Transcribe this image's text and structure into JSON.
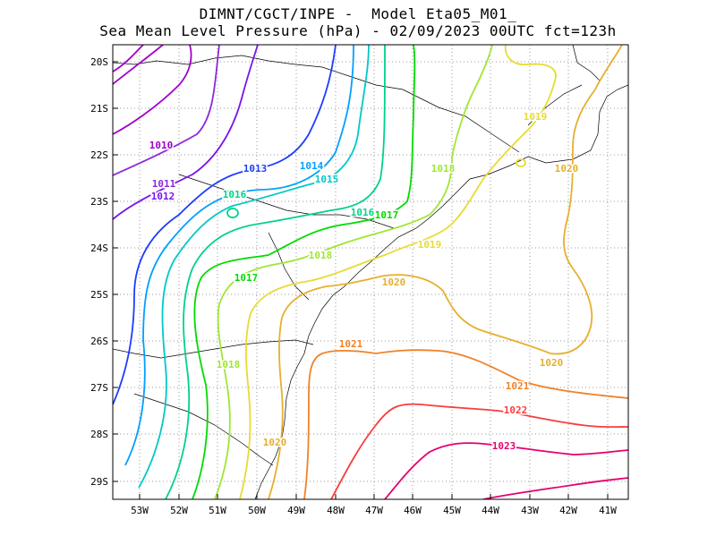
{
  "header": {
    "line1": "DIMNT/CGCT/INPE -  Model Eta05_M01_",
    "line2": "Sea Mean Level Pressure (hPa) - 02/09/2023 00UTC fct=123h"
  },
  "axes": {
    "x_ticks": [
      "53W",
      "52W",
      "51W",
      "50W",
      "49W",
      "48W",
      "47W",
      "46W",
      "45W",
      "44W",
      "43W",
      "42W",
      "41W"
    ],
    "y_ticks": [
      "20S",
      "21S",
      "22S",
      "23S",
      "24S",
      "25S",
      "26S",
      "27S",
      "28S",
      "29S"
    ]
  },
  "colors": {
    "1010": "#a000c8",
    "1011": "#8c28dc",
    "1012": "#7814f0",
    "1013": "#1e3cff",
    "1014": "#00a0ff",
    "1015": "#00c8c8",
    "1016": "#00d28c",
    "1017": "#00dc00",
    "1018": "#a0e632",
    "1019": "#e6dc32",
    "1020": "#e6af2d",
    "1021": "#f08228",
    "1022": "#fa3c3c",
    "1023": "#e6006e"
  },
  "contour_labels": [
    {
      "text": "1010",
      "level": "1010"
    },
    {
      "text": "1011",
      "level": "1011"
    },
    {
      "text": "1012",
      "level": "1012"
    },
    {
      "text": "1013",
      "level": "1013"
    },
    {
      "text": "1014",
      "level": "1014"
    },
    {
      "text": "1015",
      "level": "1015"
    },
    {
      "text": "1016",
      "level": "1016"
    },
    {
      "text": "1016",
      "level": "1016"
    },
    {
      "text": "1017",
      "level": "1017"
    },
    {
      "text": "1017",
      "level": "1017"
    },
    {
      "text": "1018",
      "level": "1018"
    },
    {
      "text": "1018",
      "level": "1018"
    },
    {
      "text": "1018",
      "level": "1018"
    },
    {
      "text": "1019",
      "level": "1019"
    },
    {
      "text": "1019",
      "level": "1019"
    },
    {
      "text": "1020",
      "level": "1020"
    },
    {
      "text": "1020",
      "level": "1020"
    },
    {
      "text": "1020",
      "level": "1020"
    },
    {
      "text": "1020",
      "level": "1020"
    },
    {
      "text": "1021",
      "level": "1021"
    },
    {
      "text": "1021",
      "level": "1021"
    },
    {
      "text": "1022",
      "level": "1022"
    },
    {
      "text": "1023",
      "level": "1023"
    }
  ]
}
